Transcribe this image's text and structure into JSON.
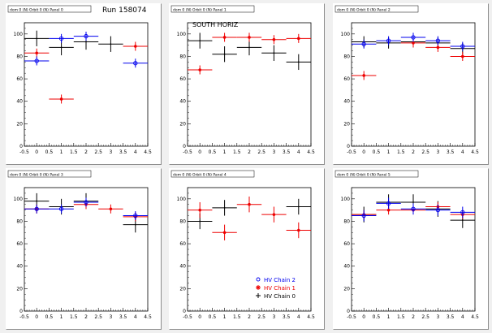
{
  "x_ticks": [
    "-0.5",
    "0",
    "0.5",
    "1",
    "1.5",
    "2",
    "2.5",
    "3",
    "3.5",
    "4",
    "4.5"
  ],
  "y_ticks": [
    "0",
    "20",
    "40",
    "60",
    "80",
    "100"
  ],
  "colors": {
    "chain2": "#0000ee",
    "chain1": "#ee0000",
    "chain0": "#000000",
    "pad_bg": "#ffffff",
    "canvas_bg": "#f0f0f0"
  },
  "legend": [
    {
      "series": "chain2",
      "marker": "circle",
      "label": "HV Chain 2"
    },
    {
      "series": "chain1",
      "marker": "star",
      "label": "HV Chain 1"
    },
    {
      "series": "chain0",
      "marker": "plus",
      "label": "HV Chain 0"
    }
  ],
  "chart_data": [
    {
      "type": "scatter",
      "panel_title": "dom 0 (N) Orbit 0 (N) Panel 0",
      "annotation": "Run 158074",
      "xlim": [
        -0.5,
        4.5
      ],
      "ylim": [
        0,
        110
      ],
      "grid": false,
      "series": [
        {
          "key": "chain2",
          "x": [
            0,
            1,
            2,
            4
          ],
          "y": [
            76,
            96,
            98,
            74
          ],
          "xerr": 0.5,
          "yerr": 4
        },
        {
          "key": "chain1",
          "x": [
            0,
            1,
            4
          ],
          "y": [
            83,
            42,
            89
          ],
          "xerr": 0.5,
          "yerr": 4
        },
        {
          "key": "chain0",
          "x": [
            0,
            1,
            2,
            3
          ],
          "y": [
            96,
            88,
            93,
            91
          ],
          "xerr": 0.5,
          "yerr": 7
        }
      ]
    },
    {
      "type": "scatter",
      "panel_title": "dom 0 (N) Orbit 0 (N) Panel 1",
      "annotation": "SOUTH HORIZ",
      "xlim": [
        -0.5,
        4.5
      ],
      "ylim": [
        0,
        110
      ],
      "grid": false,
      "series": [
        {
          "key": "chain1",
          "x": [
            0,
            1,
            2,
            3,
            4
          ],
          "y": [
            68,
            97,
            97,
            95,
            96
          ],
          "xerr": 0.5,
          "yerr": 4
        },
        {
          "key": "chain0",
          "x": [
            0,
            1,
            2,
            3,
            4
          ],
          "y": [
            94,
            82,
            88,
            83,
            75
          ],
          "xerr": 0.5,
          "yerr": 7
        }
      ]
    },
    {
      "type": "scatter",
      "panel_title": "dom 0 (N) Orbit 0 (N) Panel 2",
      "annotation": "",
      "xlim": [
        -0.5,
        4.5
      ],
      "ylim": [
        0,
        110
      ],
      "grid": false,
      "series": [
        {
          "key": "chain2",
          "x": [
            0,
            1,
            2,
            3,
            4
          ],
          "y": [
            91,
            94,
            97,
            94,
            89
          ],
          "xerr": 0.5,
          "yerr": 4
        },
        {
          "key": "chain1",
          "x": [
            0,
            2,
            3,
            4
          ],
          "y": [
            63,
            92,
            88,
            80
          ],
          "xerr": 0.5,
          "yerr": 4
        },
        {
          "key": "chain0",
          "x": [
            0,
            1,
            2,
            3,
            4
          ],
          "y": [
            93,
            92,
            93,
            92,
            87
          ],
          "xerr": 0.5,
          "yerr": 5
        }
      ]
    },
    {
      "type": "scatter",
      "panel_title": "dom 0 (N) Orbit 0 (N) Panel 3",
      "annotation": "",
      "xlim": [
        -0.5,
        4.5
      ],
      "ylim": [
        0,
        110
      ],
      "grid": false,
      "series": [
        {
          "key": "chain2",
          "x": [
            0,
            1,
            2,
            4
          ],
          "y": [
            91,
            91,
            97,
            85
          ],
          "xerr": 0.5,
          "yerr": 4
        },
        {
          "key": "chain1",
          "x": [
            0,
            2,
            3,
            4
          ],
          "y": [
            91,
            95,
            91,
            84
          ],
          "xerr": 0.5,
          "yerr": 4
        },
        {
          "key": "chain0",
          "x": [
            0,
            1,
            2,
            4
          ],
          "y": [
            98,
            93,
            98,
            77
          ],
          "xerr": 0.5,
          "yerr": 7
        }
      ]
    },
    {
      "type": "scatter",
      "panel_title": "dom 0 (N) Orbit 0 (N) Panel 4",
      "annotation": "",
      "xlim": [
        -0.5,
        4.5
      ],
      "ylim": [
        0,
        110
      ],
      "grid": false,
      "show_legend": true,
      "series": [
        {
          "key": "chain1",
          "x": [
            0,
            1,
            2,
            3,
            4
          ],
          "y": [
            90,
            70,
            95,
            86,
            72
          ],
          "xerr": 0.5,
          "yerr": 7
        },
        {
          "key": "chain0",
          "x": [
            0,
            1,
            4
          ],
          "y": [
            80,
            92,
            93
          ],
          "xerr": 0.5,
          "yerr": 7
        }
      ]
    },
    {
      "type": "scatter",
      "panel_title": "dom 0 (N) Orbit 0 (N) Panel 5",
      "annotation": "",
      "xlim": [
        -0.5,
        4.5
      ],
      "ylim": [
        0,
        110
      ],
      "grid": false,
      "series": [
        {
          "key": "chain2",
          "x": [
            0,
            1,
            2,
            3,
            4
          ],
          "y": [
            85,
            96,
            91,
            90,
            88
          ],
          "xerr": 0.5,
          "yerr": 5
        },
        {
          "key": "chain1",
          "x": [
            0,
            1,
            2,
            3,
            4
          ],
          "y": [
            86,
            90,
            90,
            93,
            86
          ],
          "xerr": 0.5,
          "yerr": 4
        },
        {
          "key": "chain0",
          "x": [
            0,
            1,
            2,
            3,
            4
          ],
          "y": [
            86,
            97,
            97,
            91,
            81
          ],
          "xerr": 0.5,
          "yerr": 7
        }
      ]
    }
  ]
}
